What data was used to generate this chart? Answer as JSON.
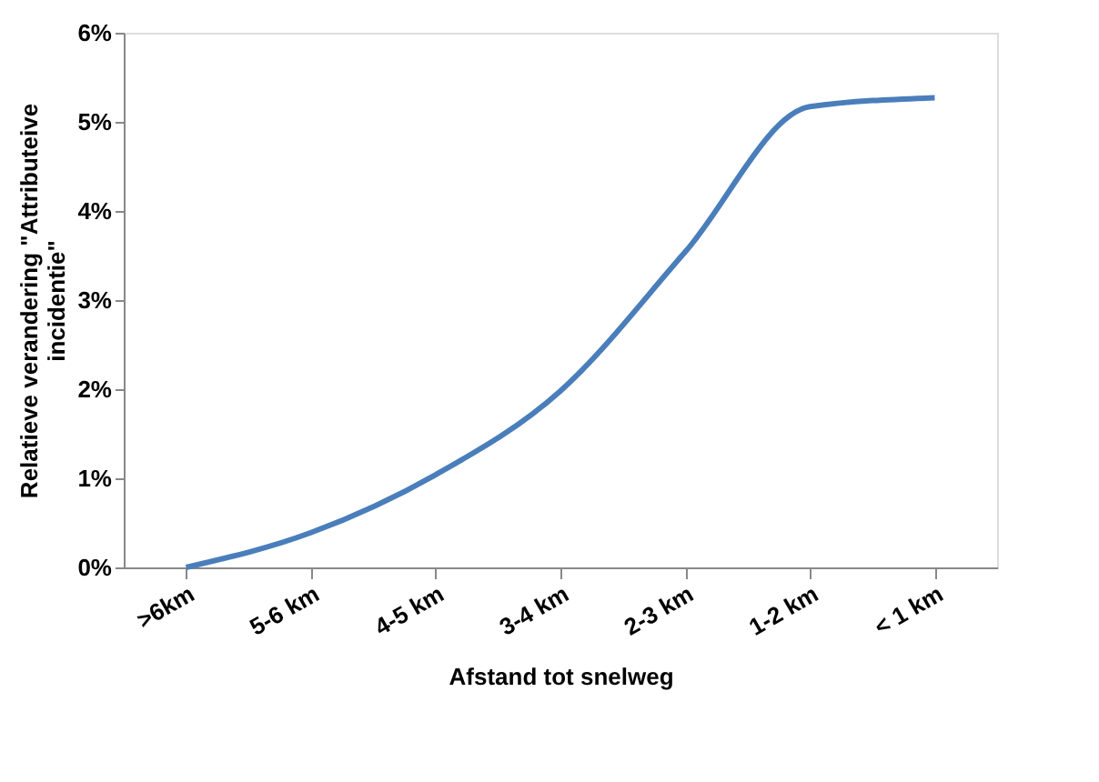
{
  "chart_data": {
    "type": "line",
    "xlabel": "Afstand tot snelweg",
    "ylabel": "Relatieve verandering \"Attributeive incidentie\"",
    "categories": [
      ">6km",
      "5-6 km",
      "4-5 km",
      "3-4 km",
      "2-3 km",
      "1-2 km",
      "< 1 km"
    ],
    "series": [
      {
        "color": "#4a7ebb",
        "values": [
          0,
          0.39,
          1.04,
          1.98,
          3.54,
          5.17,
          5.27
        ]
      }
    ],
    "ylim": [
      0,
      6
    ],
    "yticks": [
      {
        "value": 0,
        "label": "0%"
      },
      {
        "value": 1,
        "label": "1%"
      },
      {
        "value": 2,
        "label": "2%"
      },
      {
        "value": 3,
        "label": "3%"
      },
      {
        "value": 4,
        "label": "4%"
      },
      {
        "value": 5,
        "label": "5%"
      },
      {
        "value": 6,
        "label": "6%"
      }
    ],
    "grid": false,
    "legend": false,
    "marker": "none",
    "line_style": "solid"
  }
}
